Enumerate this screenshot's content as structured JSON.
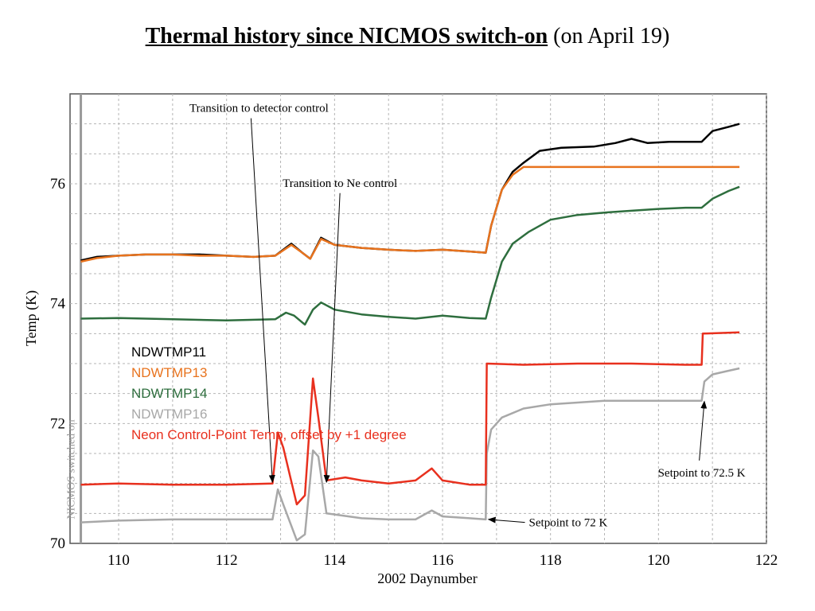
{
  "slide": {
    "title_main": "Thermal history since NICMOS switch-on",
    "title_suffix": " (on April 19)"
  },
  "chart_data": {
    "type": "line",
    "title": "",
    "xlabel": "2002 Daynumber",
    "ylabel": "Temp (K)",
    "xlim": [
      109.1,
      122
    ],
    "ylim": [
      70,
      77.5
    ],
    "x_ticks": [
      110,
      112,
      114,
      116,
      118,
      120,
      122
    ],
    "y_ticks": [
      70,
      72,
      74,
      76
    ],
    "grid": true,
    "legend_position": "left-middle",
    "vertical_marker": {
      "x": 109.3,
      "label": "NICMOS switched on"
    },
    "series": [
      {
        "name": "NDWTMP11",
        "color": "#000000",
        "points": [
          [
            109.3,
            74.72
          ],
          [
            109.6,
            74.78
          ],
          [
            110.0,
            74.8
          ],
          [
            110.5,
            74.82
          ],
          [
            111.0,
            74.82
          ],
          [
            111.5,
            74.82
          ],
          [
            112.0,
            74.8
          ],
          [
            112.5,
            74.78
          ],
          [
            112.9,
            74.8
          ],
          [
            113.2,
            75.0
          ],
          [
            113.4,
            74.85
          ],
          [
            113.55,
            74.75
          ],
          [
            113.75,
            75.1
          ],
          [
            114.0,
            74.98
          ],
          [
            114.5,
            74.93
          ],
          [
            115.0,
            74.9
          ],
          [
            115.5,
            74.88
          ],
          [
            116.0,
            74.9
          ],
          [
            116.5,
            74.87
          ],
          [
            116.8,
            74.85
          ],
          [
            116.9,
            75.3
          ],
          [
            117.1,
            75.9
          ],
          [
            117.3,
            76.2
          ],
          [
            117.5,
            76.35
          ],
          [
            117.8,
            76.55
          ],
          [
            118.2,
            76.6
          ],
          [
            118.8,
            76.62
          ],
          [
            119.2,
            76.68
          ],
          [
            119.5,
            76.75
          ],
          [
            119.8,
            76.68
          ],
          [
            120.2,
            76.7
          ],
          [
            120.5,
            76.7
          ],
          [
            120.8,
            76.7
          ],
          [
            121.0,
            76.88
          ],
          [
            121.3,
            76.95
          ],
          [
            121.5,
            77.0
          ]
        ]
      },
      {
        "name": "NDWTMP13",
        "color": "#e8731e",
        "points": [
          [
            109.3,
            74.7
          ],
          [
            109.6,
            74.76
          ],
          [
            110.0,
            74.8
          ],
          [
            110.5,
            74.82
          ],
          [
            111.0,
            74.82
          ],
          [
            111.5,
            74.8
          ],
          [
            112.0,
            74.8
          ],
          [
            112.5,
            74.78
          ],
          [
            112.9,
            74.8
          ],
          [
            113.2,
            74.98
          ],
          [
            113.4,
            74.85
          ],
          [
            113.55,
            74.75
          ],
          [
            113.75,
            75.08
          ],
          [
            114.0,
            74.98
          ],
          [
            114.5,
            74.93
          ],
          [
            115.0,
            74.9
          ],
          [
            115.5,
            74.88
          ],
          [
            116.0,
            74.9
          ],
          [
            116.5,
            74.87
          ],
          [
            116.8,
            74.85
          ],
          [
            116.9,
            75.3
          ],
          [
            117.1,
            75.9
          ],
          [
            117.3,
            76.15
          ],
          [
            117.5,
            76.28
          ],
          [
            117.7,
            76.28
          ],
          [
            121.5,
            76.28
          ]
        ]
      },
      {
        "name": "NDWTMP14",
        "color": "#2e6e3e",
        "points": [
          [
            109.3,
            73.75
          ],
          [
            110.0,
            73.76
          ],
          [
            111.0,
            73.74
          ],
          [
            112.0,
            73.72
          ],
          [
            112.9,
            73.74
          ],
          [
            113.1,
            73.85
          ],
          [
            113.25,
            73.8
          ],
          [
            113.45,
            73.65
          ],
          [
            113.6,
            73.9
          ],
          [
            113.75,
            74.02
          ],
          [
            114.0,
            73.9
          ],
          [
            114.5,
            73.82
          ],
          [
            115.0,
            73.78
          ],
          [
            115.5,
            73.75
          ],
          [
            116.0,
            73.8
          ],
          [
            116.5,
            73.76
          ],
          [
            116.8,
            73.75
          ],
          [
            116.9,
            74.1
          ],
          [
            117.1,
            74.7
          ],
          [
            117.3,
            75.0
          ],
          [
            117.6,
            75.2
          ],
          [
            118.0,
            75.4
          ],
          [
            118.5,
            75.48
          ],
          [
            119.0,
            75.52
          ],
          [
            119.5,
            75.55
          ],
          [
            120.0,
            75.58
          ],
          [
            120.5,
            75.6
          ],
          [
            120.8,
            75.6
          ],
          [
            121.0,
            75.75
          ],
          [
            121.3,
            75.88
          ],
          [
            121.5,
            75.95
          ]
        ]
      },
      {
        "name": "NDWTMP16",
        "color": "#a8a8a8",
        "points": [
          [
            109.3,
            70.35
          ],
          [
            110.0,
            70.38
          ],
          [
            111.0,
            70.4
          ],
          [
            112.0,
            70.4
          ],
          [
            112.85,
            70.4
          ],
          [
            112.95,
            70.9
          ],
          [
            113.05,
            70.65
          ],
          [
            113.3,
            70.05
          ],
          [
            113.45,
            70.15
          ],
          [
            113.6,
            71.55
          ],
          [
            113.7,
            71.45
          ],
          [
            113.85,
            70.5
          ],
          [
            114.5,
            70.42
          ],
          [
            115.0,
            70.4
          ],
          [
            115.5,
            70.4
          ],
          [
            115.8,
            70.55
          ],
          [
            116.0,
            70.45
          ],
          [
            116.5,
            70.42
          ],
          [
            116.8,
            70.4
          ],
          [
            116.82,
            71.5
          ],
          [
            116.9,
            71.9
          ],
          [
            117.1,
            72.1
          ],
          [
            117.5,
            72.25
          ],
          [
            118.0,
            72.32
          ],
          [
            118.5,
            72.35
          ],
          [
            119.0,
            72.38
          ],
          [
            119.5,
            72.38
          ],
          [
            120.0,
            72.38
          ],
          [
            120.8,
            72.38
          ],
          [
            120.85,
            72.7
          ],
          [
            121.0,
            72.82
          ],
          [
            121.3,
            72.88
          ],
          [
            121.5,
            72.92
          ]
        ]
      },
      {
        "name": "Neon Control-Point Temp, offset by +1 degree",
        "color": "#e8301e",
        "points": [
          [
            109.3,
            70.98
          ],
          [
            110.0,
            71.0
          ],
          [
            111.0,
            70.98
          ],
          [
            112.0,
            70.98
          ],
          [
            112.85,
            71.0
          ],
          [
            112.95,
            71.85
          ],
          [
            113.05,
            71.6
          ],
          [
            113.3,
            70.65
          ],
          [
            113.45,
            70.8
          ],
          [
            113.6,
            72.75
          ],
          [
            113.7,
            72.1
          ],
          [
            113.85,
            71.05
          ],
          [
            114.2,
            71.1
          ],
          [
            114.5,
            71.05
          ],
          [
            115.0,
            71.0
          ],
          [
            115.5,
            71.05
          ],
          [
            115.8,
            71.25
          ],
          [
            116.0,
            71.05
          ],
          [
            116.5,
            70.98
          ],
          [
            116.8,
            70.98
          ],
          [
            116.82,
            73.0
          ],
          [
            117.5,
            72.98
          ],
          [
            118.5,
            73.0
          ],
          [
            119.5,
            73.0
          ],
          [
            120.5,
            72.98
          ],
          [
            120.8,
            72.98
          ],
          [
            120.82,
            73.5
          ],
          [
            121.5,
            73.52
          ]
        ]
      }
    ],
    "annotations": [
      {
        "text": "Transition to detector control",
        "label_x": 112.6,
        "label_y": 77.2,
        "target_x": 112.85,
        "target_y": 71.02
      },
      {
        "text": "Transition to Ne control",
        "label_x": 114.1,
        "label_y": 75.95,
        "target_x": 113.85,
        "target_y": 71.02
      },
      {
        "text": "Setpoint to 72.5 K",
        "label_x": 120.8,
        "label_y": 71.25,
        "target_x": 120.85,
        "target_y": 72.37
      },
      {
        "text": "Setpoint to 72 K",
        "label_x": 117.6,
        "label_y": 70.35,
        "target_x": 116.85,
        "target_y": 70.4
      }
    ]
  }
}
